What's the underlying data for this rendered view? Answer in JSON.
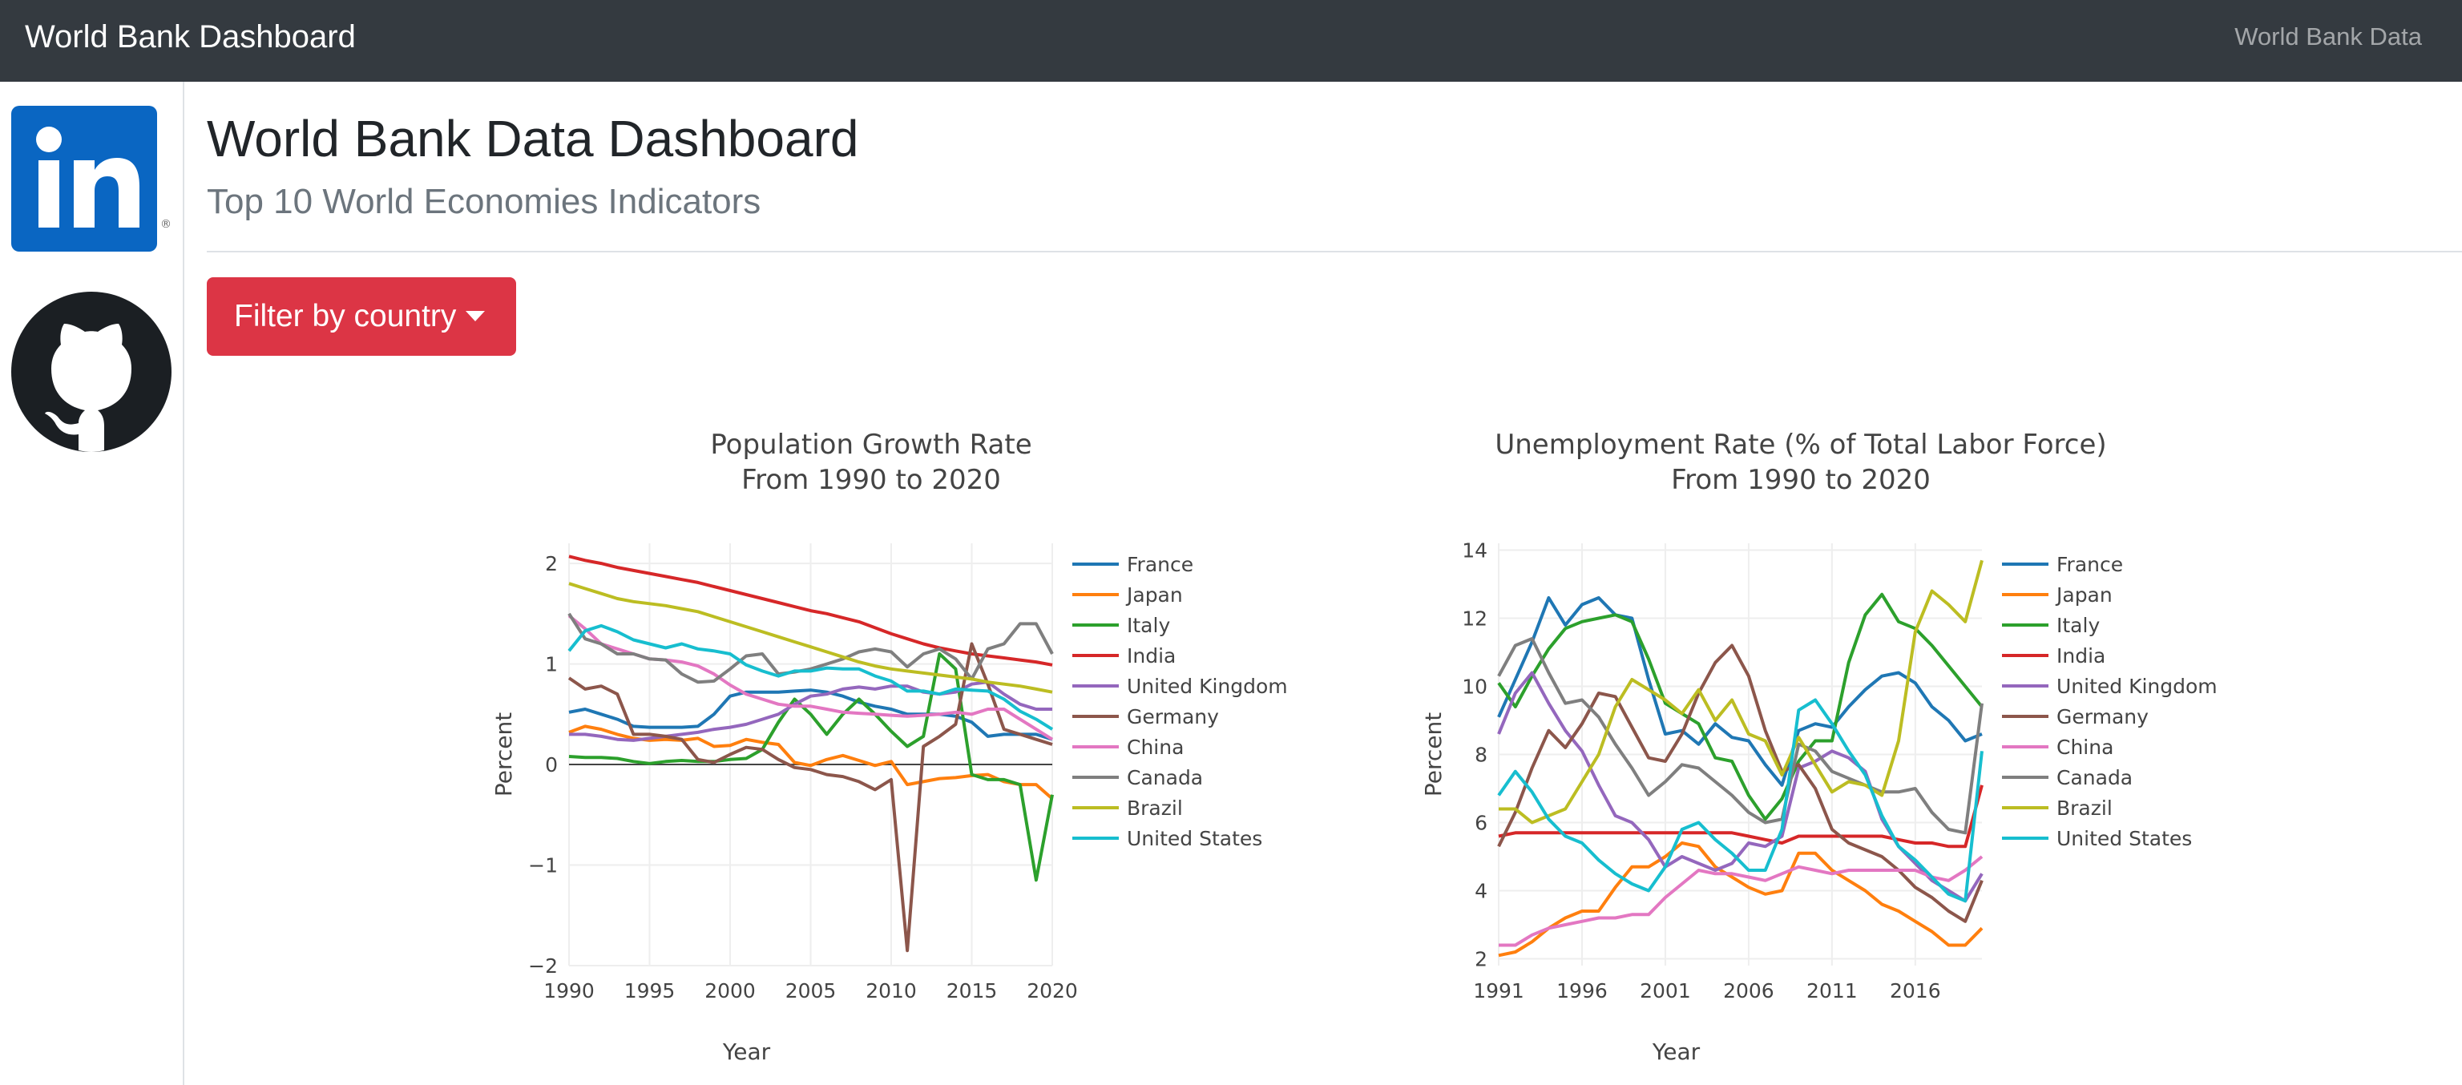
{
  "navbar": {
    "brand": "World Bank Dashboard",
    "link": "World Bank Data"
  },
  "sidebar": {
    "linkedin_icon": "linkedin-icon",
    "github_icon": "github-icon"
  },
  "header": {
    "title": "World Bank Data Dashboard",
    "subtitle": "Top 10 World Economies Indicators"
  },
  "filter": {
    "label": "Filter by country"
  },
  "colors": {
    "navbar": "#343a40",
    "danger": "#dc3545",
    "France": "#1f77b4",
    "Japan": "#ff7f0e",
    "Italy": "#2ca02c",
    "India": "#d62728",
    "United Kingdom": "#9467bd",
    "Germany": "#8c564b",
    "China": "#e377c2",
    "Canada": "#7f7f7f",
    "Brazil": "#bcbd22",
    "United States": "#17becf"
  },
  "chart_data": [
    {
      "type": "line",
      "title": "Population Growth Rate",
      "subtitle": "From 1990 to 2020",
      "xlabel": "Year",
      "ylabel": "Percent",
      "xlim": [
        1990,
        2020
      ],
      "ylim": [
        -2,
        2.2
      ],
      "xticks": [
        "1990",
        "1995",
        "2000",
        "2005",
        "2010",
        "2015",
        "2020"
      ],
      "yticks": [
        "−2",
        "−1",
        "0",
        "1",
        "2"
      ],
      "grid": true,
      "legend": "right",
      "x": [
        1990,
        1991,
        1992,
        1993,
        1994,
        1995,
        1996,
        1997,
        1998,
        1999,
        2000,
        2001,
        2002,
        2003,
        2004,
        2005,
        2006,
        2007,
        2008,
        2009,
        2010,
        2011,
        2012,
        2013,
        2014,
        2015,
        2016,
        2017,
        2018,
        2019,
        2020
      ],
      "series": [
        {
          "name": "France",
          "values": [
            0.52,
            0.55,
            0.5,
            0.45,
            0.38,
            0.37,
            0.37,
            0.37,
            0.38,
            0.5,
            0.68,
            0.72,
            0.72,
            0.72,
            0.73,
            0.74,
            0.72,
            0.68,
            0.62,
            0.58,
            0.55,
            0.5,
            0.5,
            0.5,
            0.48,
            0.42,
            0.28,
            0.3,
            0.3,
            0.3,
            0.25
          ]
        },
        {
          "name": "Japan",
          "values": [
            0.32,
            0.38,
            0.35,
            0.3,
            0.26,
            0.24,
            0.25,
            0.24,
            0.26,
            0.18,
            0.19,
            0.25,
            0.22,
            0.2,
            0.02,
            -0.01,
            0.05,
            0.09,
            0.04,
            -0.01,
            0.03,
            -0.2,
            -0.17,
            -0.14,
            -0.13,
            -0.11,
            -0.1,
            -0.17,
            -0.2,
            -0.2,
            -0.34
          ]
        },
        {
          "name": "Italy",
          "values": [
            0.08,
            0.07,
            0.07,
            0.06,
            0.03,
            0.01,
            0.03,
            0.04,
            0.03,
            0.03,
            0.05,
            0.06,
            0.15,
            0.42,
            0.65,
            0.5,
            0.3,
            0.5,
            0.65,
            0.5,
            0.33,
            0.18,
            0.28,
            1.1,
            0.95,
            -0.1,
            -0.15,
            -0.15,
            -0.2,
            -1.15,
            -0.3
          ]
        },
        {
          "name": "India",
          "values": [
            2.07,
            2.03,
            2.0,
            1.96,
            1.93,
            1.9,
            1.87,
            1.84,
            1.81,
            1.77,
            1.73,
            1.69,
            1.65,
            1.61,
            1.57,
            1.53,
            1.5,
            1.46,
            1.42,
            1.36,
            1.3,
            1.25,
            1.2,
            1.16,
            1.13,
            1.1,
            1.08,
            1.06,
            1.04,
            1.02,
            0.99
          ]
        },
        {
          "name": "United Kingdom",
          "values": [
            0.3,
            0.3,
            0.28,
            0.25,
            0.24,
            0.26,
            0.28,
            0.3,
            0.32,
            0.35,
            0.37,
            0.4,
            0.45,
            0.5,
            0.6,
            0.68,
            0.7,
            0.75,
            0.77,
            0.75,
            0.78,
            0.78,
            0.72,
            0.7,
            0.72,
            0.8,
            0.82,
            0.7,
            0.6,
            0.55,
            0.55
          ]
        },
        {
          "name": "Germany",
          "values": [
            0.86,
            0.75,
            0.78,
            0.7,
            0.3,
            0.3,
            0.28,
            0.25,
            0.05,
            0.02,
            0.1,
            0.17,
            0.15,
            0.05,
            -0.03,
            -0.05,
            -0.1,
            -0.12,
            -0.17,
            -0.25,
            -0.15,
            -1.85,
            0.18,
            0.28,
            0.4,
            1.2,
            0.8,
            0.35,
            0.3,
            0.25,
            0.2
          ]
        },
        {
          "name": "China",
          "values": [
            1.48,
            1.35,
            1.2,
            1.15,
            1.1,
            1.05,
            1.04,
            1.02,
            0.98,
            0.9,
            0.79,
            0.7,
            0.65,
            0.6,
            0.58,
            0.58,
            0.55,
            0.52,
            0.51,
            0.5,
            0.49,
            0.48,
            0.49,
            0.5,
            0.52,
            0.5,
            0.55,
            0.55,
            0.45,
            0.35,
            0.25
          ]
        },
        {
          "name": "Canada",
          "values": [
            1.5,
            1.25,
            1.2,
            1.1,
            1.1,
            1.05,
            1.04,
            0.9,
            0.82,
            0.83,
            0.95,
            1.08,
            1.1,
            0.9,
            0.92,
            0.95,
            1.0,
            1.05,
            1.12,
            1.15,
            1.12,
            0.97,
            1.1,
            1.15,
            1.05,
            0.85,
            1.15,
            1.2,
            1.4,
            1.4,
            1.1
          ]
        },
        {
          "name": "Brazil",
          "values": [
            1.8,
            1.75,
            1.7,
            1.65,
            1.62,
            1.6,
            1.58,
            1.55,
            1.52,
            1.47,
            1.42,
            1.37,
            1.32,
            1.27,
            1.22,
            1.17,
            1.12,
            1.07,
            1.02,
            0.98,
            0.95,
            0.93,
            0.91,
            0.89,
            0.87,
            0.85,
            0.82,
            0.8,
            0.78,
            0.75,
            0.72
          ]
        },
        {
          "name": "United States",
          "values": [
            1.13,
            1.33,
            1.38,
            1.32,
            1.24,
            1.2,
            1.16,
            1.2,
            1.15,
            1.13,
            1.1,
            0.99,
            0.93,
            0.88,
            0.93,
            0.93,
            0.96,
            0.95,
            0.95,
            0.88,
            0.83,
            0.73,
            0.73,
            0.7,
            0.75,
            0.74,
            0.73,
            0.65,
            0.53,
            0.45,
            0.35
          ]
        }
      ]
    },
    {
      "type": "line",
      "title": "Unemployment Rate (% of Total Labor Force)",
      "subtitle": "From 1990 to 2020",
      "xlabel": "Year",
      "ylabel": "Percent",
      "xlim": [
        1991,
        2020
      ],
      "ylim": [
        1.8,
        14.2
      ],
      "xticks": [
        "1991",
        "1996",
        "2001",
        "2006",
        "2011",
        "2016"
      ],
      "yticks": [
        "2",
        "4",
        "6",
        "8",
        "10",
        "12",
        "14"
      ],
      "grid": true,
      "legend": "right",
      "x": [
        1991,
        1992,
        1993,
        1994,
        1995,
        1996,
        1997,
        1998,
        1999,
        2000,
        2001,
        2002,
        2003,
        2004,
        2005,
        2006,
        2007,
        2008,
        2009,
        2010,
        2011,
        2012,
        2013,
        2014,
        2015,
        2016,
        2017,
        2018,
        2019,
        2020
      ],
      "series": [
        {
          "name": "France",
          "values": [
            9.1,
            10.2,
            11.3,
            12.6,
            11.8,
            12.4,
            12.6,
            12.1,
            12.0,
            10.2,
            8.6,
            8.7,
            8.3,
            8.9,
            8.5,
            8.4,
            7.7,
            7.1,
            8.7,
            8.9,
            8.8,
            9.4,
            9.9,
            10.3,
            10.4,
            10.1,
            9.4,
            9.0,
            8.4,
            8.6
          ]
        },
        {
          "name": "Japan",
          "values": [
            2.1,
            2.2,
            2.5,
            2.9,
            3.2,
            3.4,
            3.4,
            4.1,
            4.7,
            4.7,
            5.0,
            5.4,
            5.3,
            4.7,
            4.4,
            4.1,
            3.9,
            4.0,
            5.1,
            5.1,
            4.6,
            4.3,
            4.0,
            3.6,
            3.4,
            3.1,
            2.8,
            2.4,
            2.4,
            2.9
          ]
        },
        {
          "name": "Italy",
          "values": [
            10.1,
            9.4,
            10.3,
            11.1,
            11.7,
            11.9,
            12.0,
            12.1,
            11.9,
            10.8,
            9.5,
            9.2,
            8.9,
            7.9,
            7.8,
            6.8,
            6.1,
            6.7,
            7.8,
            8.4,
            8.4,
            10.7,
            12.1,
            12.7,
            11.9,
            11.7,
            11.2,
            10.6,
            10.0,
            9.4
          ]
        },
        {
          "name": "India",
          "values": [
            5.6,
            5.7,
            5.7,
            5.7,
            5.7,
            5.7,
            5.7,
            5.7,
            5.7,
            5.7,
            5.7,
            5.7,
            5.7,
            5.7,
            5.7,
            5.6,
            5.5,
            5.4,
            5.6,
            5.6,
            5.6,
            5.6,
            5.6,
            5.6,
            5.5,
            5.4,
            5.4,
            5.3,
            5.3,
            7.1
          ]
        },
        {
          "name": "United Kingdom",
          "values": [
            8.6,
            9.8,
            10.4,
            9.5,
            8.7,
            8.1,
            7.1,
            6.2,
            6.0,
            5.5,
            4.7,
            5.0,
            4.8,
            4.6,
            4.8,
            5.4,
            5.3,
            5.6,
            7.6,
            7.8,
            8.1,
            7.9,
            7.5,
            6.1,
            5.3,
            4.8,
            4.3,
            4.0,
            3.7,
            4.5
          ]
        },
        {
          "name": "Germany",
          "values": [
            5.3,
            6.3,
            7.6,
            8.7,
            8.2,
            8.9,
            9.8,
            9.7,
            8.8,
            7.9,
            7.8,
            8.6,
            9.8,
            10.7,
            11.2,
            10.3,
            8.7,
            7.5,
            7.7,
            7.0,
            5.8,
            5.4,
            5.2,
            5.0,
            4.6,
            4.1,
            3.8,
            3.4,
            3.1,
            4.3
          ]
        },
        {
          "name": "China",
          "values": [
            2.4,
            2.4,
            2.7,
            2.9,
            3.0,
            3.1,
            3.2,
            3.2,
            3.3,
            3.3,
            3.8,
            4.2,
            4.6,
            4.5,
            4.5,
            4.4,
            4.3,
            4.5,
            4.7,
            4.6,
            4.5,
            4.6,
            4.6,
            4.6,
            4.6,
            4.6,
            4.4,
            4.3,
            4.6,
            5.0
          ]
        },
        {
          "name": "Canada",
          "values": [
            10.3,
            11.2,
            11.4,
            10.4,
            9.5,
            9.6,
            9.1,
            8.3,
            7.6,
            6.8,
            7.2,
            7.7,
            7.6,
            7.2,
            6.8,
            6.3,
            6.0,
            6.1,
            8.3,
            8.1,
            7.5,
            7.3,
            7.1,
            6.9,
            6.9,
            7.0,
            6.3,
            5.8,
            5.7,
            9.5
          ]
        },
        {
          "name": "Brazil",
          "values": [
            6.4,
            6.4,
            6.0,
            6.2,
            6.4,
            7.2,
            8.0,
            9.4,
            10.2,
            9.9,
            9.6,
            9.2,
            9.9,
            9.0,
            9.6,
            8.6,
            8.4,
            7.4,
            8.5,
            7.7,
            6.9,
            7.2,
            7.1,
            6.8,
            8.4,
            11.6,
            12.8,
            12.4,
            11.9,
            13.7
          ]
        },
        {
          "name": "United States",
          "values": [
            6.8,
            7.5,
            6.9,
            6.1,
            5.6,
            5.4,
            4.9,
            4.5,
            4.2,
            4.0,
            4.7,
            5.8,
            6.0,
            5.5,
            5.1,
            4.6,
            4.6,
            5.8,
            9.3,
            9.6,
            8.9,
            8.1,
            7.4,
            6.2,
            5.3,
            4.9,
            4.4,
            3.9,
            3.7,
            8.1
          ]
        }
      ]
    }
  ]
}
